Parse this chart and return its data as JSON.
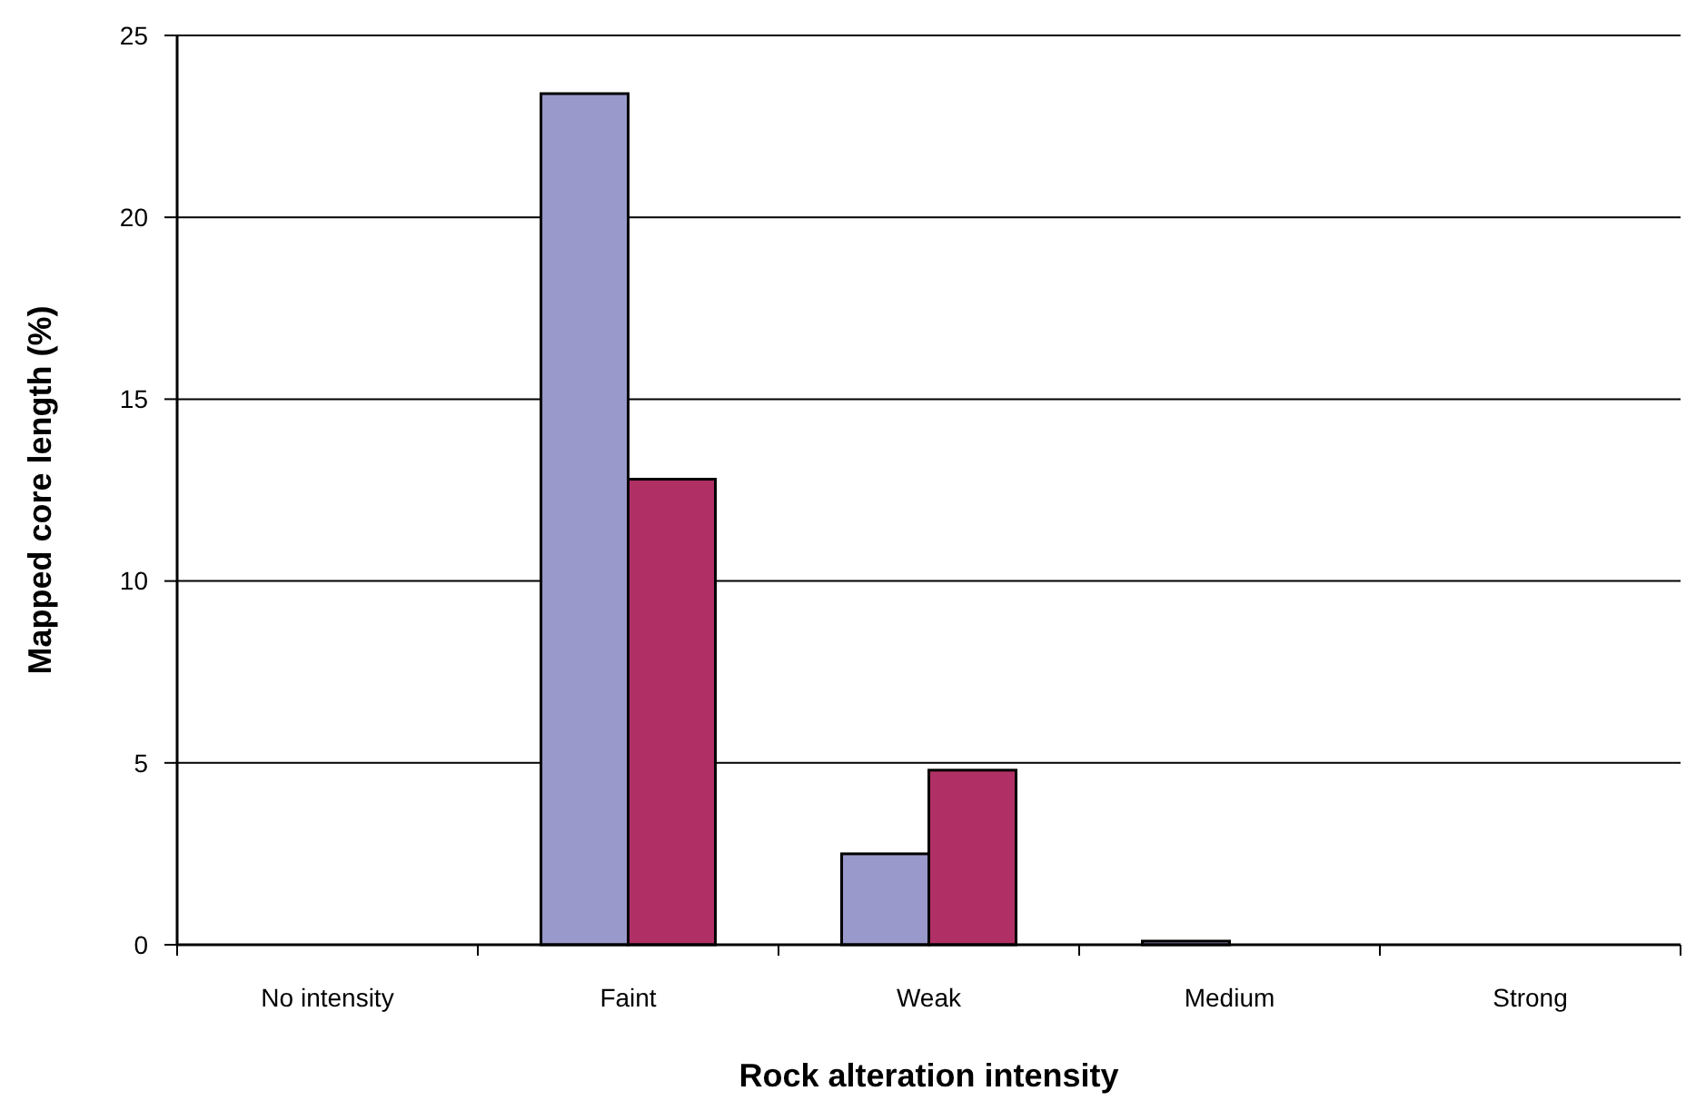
{
  "chart_data": {
    "type": "bar",
    "xlabel": "Rock alteration intensity",
    "ylabel": "Mapped core length (%)",
    "categories": [
      "No intensity",
      "Faint",
      "Weak",
      "Medium",
      "Strong"
    ],
    "series": [
      {
        "color": "#9999cc",
        "values": [
          0,
          23.4,
          2.5,
          0.1,
          0
        ]
      },
      {
        "color": "#b03066",
        "values": [
          0,
          12.8,
          4.8,
          0,
          0
        ]
      }
    ],
    "ylim": [
      0,
      25
    ],
    "yticks": [
      0,
      5,
      10,
      15,
      20,
      25
    ],
    "grid": "y"
  }
}
